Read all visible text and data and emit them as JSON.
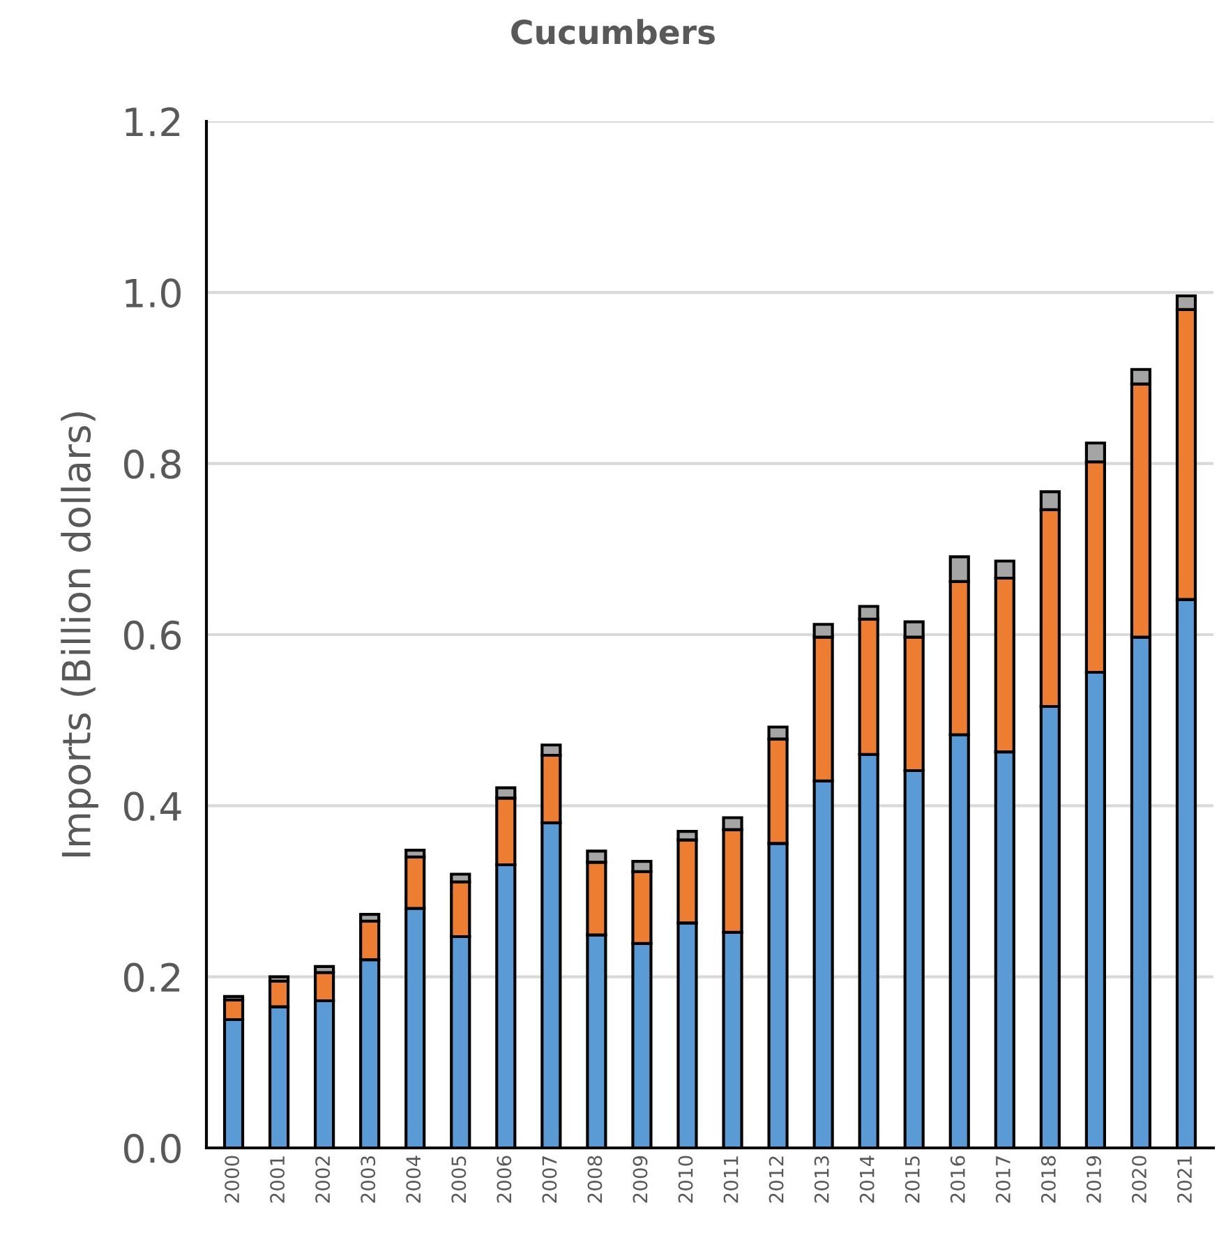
{
  "chart_data": {
    "type": "bar",
    "title": "Cucumbers",
    "ylabel": "Imports (Billion dollars)",
    "stacked": true,
    "grid": "y",
    "categories": [
      "2000",
      "2001",
      "2002",
      "2003",
      "2004",
      "2005",
      "2006",
      "2007",
      "2008",
      "2009",
      "2010",
      "2011",
      "2012",
      "2013",
      "2014",
      "2015",
      "2016",
      "2017",
      "2018",
      "2019",
      "2020",
      "2021"
    ],
    "series": [
      {
        "color": "#5b9bd5",
        "values": [
          0.15,
          0.165,
          0.172,
          0.22,
          0.28,
          0.247,
          0.331,
          0.38,
          0.249,
          0.239,
          0.263,
          0.252,
          0.356,
          0.429,
          0.46,
          0.441,
          0.483,
          0.463,
          0.516,
          0.556,
          0.597,
          0.641
        ]
      },
      {
        "color": "#ed7d31",
        "values": [
          0.023,
          0.03,
          0.033,
          0.045,
          0.06,
          0.064,
          0.078,
          0.079,
          0.085,
          0.084,
          0.097,
          0.12,
          0.122,
          0.168,
          0.158,
          0.156,
          0.179,
          0.203,
          0.23,
          0.246,
          0.296,
          0.339
        ]
      },
      {
        "color": "#a5a5a5",
        "values": [
          0.004,
          0.005,
          0.007,
          0.008,
          0.008,
          0.009,
          0.012,
          0.012,
          0.013,
          0.012,
          0.01,
          0.014,
          0.014,
          0.015,
          0.015,
          0.018,
          0.029,
          0.02,
          0.021,
          0.022,
          0.017,
          0.016
        ]
      }
    ],
    "ylim": [
      0,
      1.2
    ],
    "yticks": [
      {
        "value": 0,
        "label": "0.0"
      },
      {
        "value": 0.2,
        "label": "0.2"
      },
      {
        "value": 0.4,
        "label": "0.4"
      },
      {
        "value": 0.6,
        "label": "0.6"
      },
      {
        "value": 0.8,
        "label": "0.8"
      },
      {
        "value": 1.0,
        "label": "1.0"
      },
      {
        "value": 1.2,
        "label": "1.2"
      }
    ]
  }
}
